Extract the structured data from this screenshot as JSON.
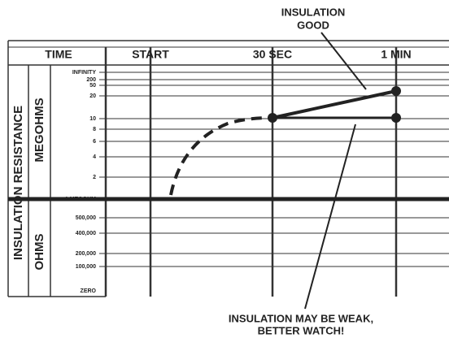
{
  "callouts": {
    "good": [
      "INSULATION",
      "GOOD"
    ],
    "weak": [
      "INSULATION MAY BE WEAK,",
      "BETTER WATCH!"
    ]
  },
  "header": {
    "columns": [
      "TIME",
      "START",
      "30 SEC",
      "1 MIN"
    ]
  },
  "axis": {
    "title": "INSULATION RESISTANCE",
    "upper": "MEGOHMS",
    "lower": "OHMS"
  },
  "scale": {
    "labels": [
      "INFINITY",
      "200",
      "50",
      "20",
      "10",
      "8",
      "6",
      "4",
      "2",
      "1 MEGOHM",
      "500,000",
      "400,000",
      "200,000",
      "100,000",
      "ZERO"
    ]
  }
}
